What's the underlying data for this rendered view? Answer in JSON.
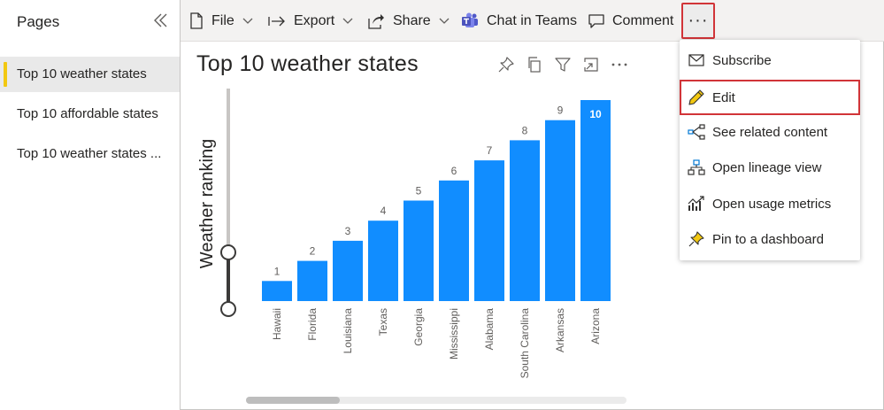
{
  "sidebar": {
    "title": "Pages",
    "pages": [
      {
        "label": "Top 10 weather states",
        "active": true
      },
      {
        "label": "Top 10 affordable states",
        "active": false
      },
      {
        "label": "Top 10 weather states ...",
        "active": false
      }
    ]
  },
  "toolbar": {
    "file_label": "File",
    "export_label": "Export",
    "share_label": "Share",
    "teams_label": "Chat in Teams",
    "comment_label": "Comment",
    "more_label": "···"
  },
  "visual": {
    "title": "Top 10 weather states"
  },
  "menu": {
    "items": [
      {
        "label": "Subscribe",
        "icon": "envelope-icon"
      },
      {
        "label": "Edit",
        "icon": "pencil-icon"
      },
      {
        "label": "See related content",
        "icon": "related-content-icon"
      },
      {
        "label": "Open lineage view",
        "icon": "lineage-icon"
      },
      {
        "label": "Open usage metrics",
        "icon": "usage-metrics-icon"
      },
      {
        "label": "Pin to a dashboard",
        "icon": "pin-icon"
      }
    ]
  },
  "colors": {
    "bar": "#118dff",
    "active_page_marker": "#f2c811",
    "highlight_border": "#d13438"
  },
  "chart_data": {
    "type": "bar",
    "title": "Top 10 weather states",
    "ylabel": "Weather ranking",
    "categories": [
      "Hawaii",
      "Florida",
      "Louisiana",
      "Texas",
      "Georgia",
      "Mississippi",
      "Alabama",
      "South Carolina",
      "Arkansas",
      "Arizona"
    ],
    "values": [
      1,
      2,
      3,
      4,
      5,
      6,
      7,
      8,
      9,
      10
    ],
    "data_labels": [
      "1",
      "2",
      "3",
      "4",
      "5",
      "6",
      "7",
      "8",
      "9",
      "10"
    ],
    "ylim": [
      0,
      10
    ],
    "grid": false,
    "legend": "none"
  }
}
